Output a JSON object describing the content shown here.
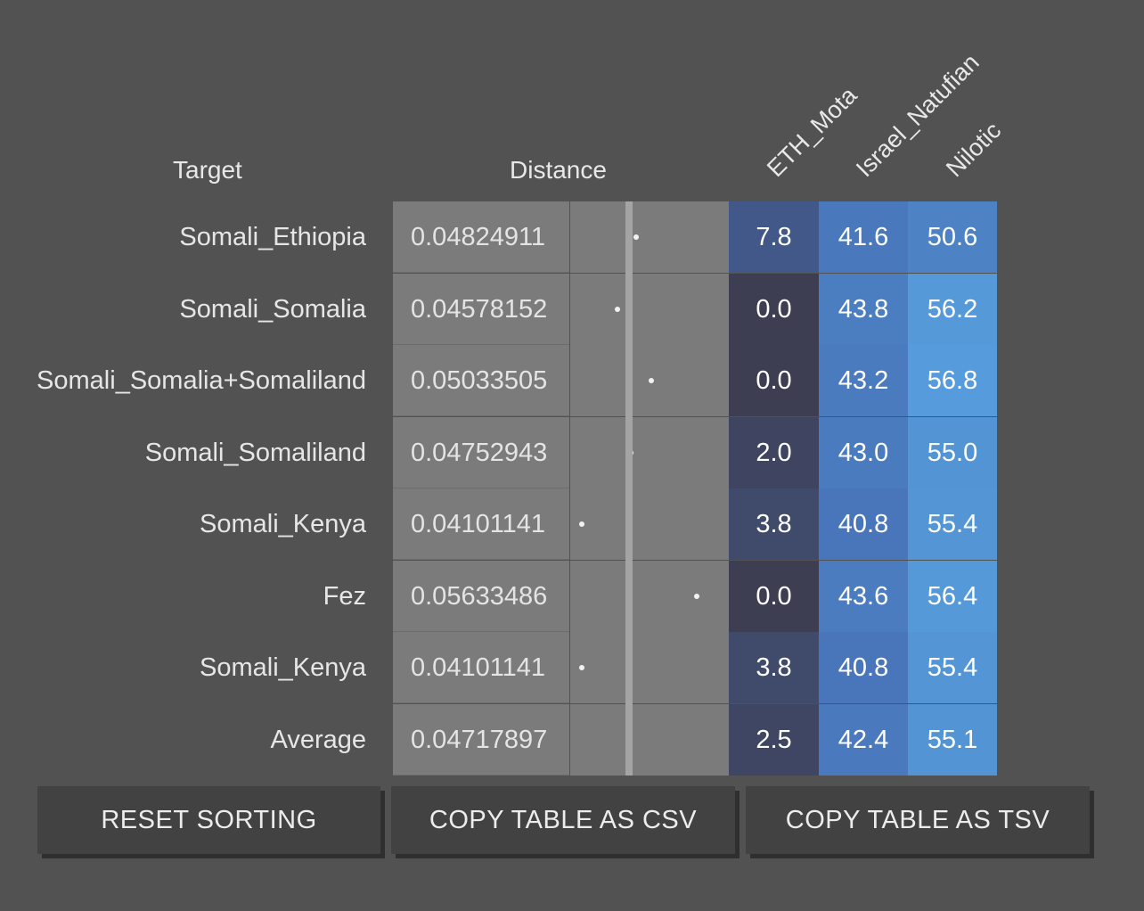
{
  "headers": {
    "target": "Target",
    "distance": "Distance",
    "columns": [
      "ETH_Mota",
      "Israel_Natufian",
      "Nilotic"
    ]
  },
  "rows": [
    {
      "target": "Somali_Ethiopia",
      "distance": "0.04824911",
      "values": [
        "7.8",
        "41.6",
        "50.6"
      ]
    },
    {
      "target": "Somali_Somalia",
      "distance": "0.04578152",
      "values": [
        "0.0",
        "43.8",
        "56.2"
      ]
    },
    {
      "target": "Somali_Somalia+Somaliland",
      "distance": "0.05033505",
      "values": [
        "0.0",
        "43.2",
        "56.8"
      ]
    },
    {
      "target": "Somali_Somaliland",
      "distance": "0.04752943",
      "values": [
        "2.0",
        "43.0",
        "55.0"
      ]
    },
    {
      "target": "Somali_Kenya",
      "distance": "0.04101141",
      "values": [
        "3.8",
        "40.8",
        "55.4"
      ]
    },
    {
      "target": "Fez",
      "distance": "0.05633486",
      "values": [
        "0.0",
        "43.6",
        "56.4"
      ]
    },
    {
      "target": "Somali_Kenya",
      "distance": "0.04101141",
      "values": [
        "3.8",
        "40.8",
        "55.4"
      ]
    },
    {
      "target": "Average",
      "distance": "0.04717897",
      "values": [
        "2.5",
        "42.4",
        "55.1"
      ]
    }
  ],
  "buttons": {
    "reset": "RESET SORTING",
    "copy_csv": "COPY TABLE AS CSV",
    "copy_tsv": "COPY TABLE AS TSV"
  },
  "colors": {
    "background": "#525252",
    "distance_cell": "#7b7b7b",
    "button": "#424242",
    "heat_low": "#3e3e52",
    "heat_high": "#5aa8e6"
  }
}
